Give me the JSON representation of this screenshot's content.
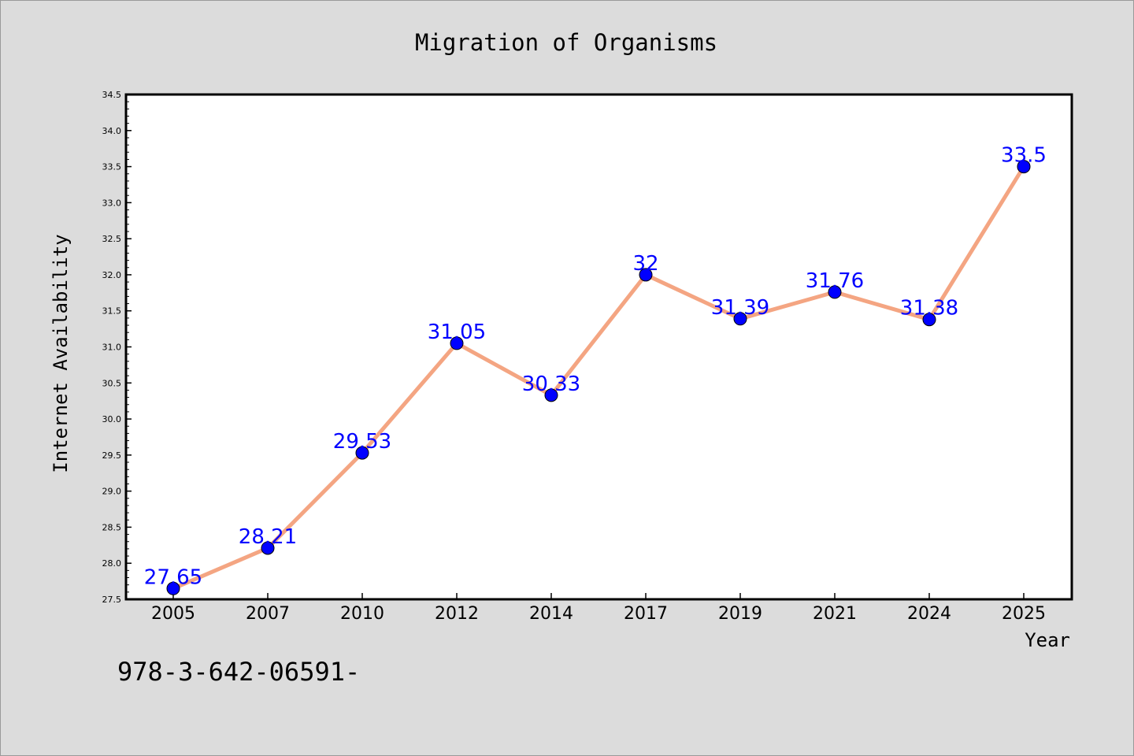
{
  "chart_data": {
    "type": "line",
    "title": "Migration of Organisms",
    "xlabel": "Year",
    "ylabel": "Internet Availability",
    "categories": [
      "2005",
      "2007",
      "2010",
      "2012",
      "2014",
      "2017",
      "2019",
      "2021",
      "2024",
      "2025"
    ],
    "series": [
      {
        "values": [
          27.65,
          28.21,
          29.53,
          31.05,
          30.33,
          32,
          31.39,
          31.76,
          31.38,
          33.5
        ],
        "labels": [
          "27.65",
          "28.21",
          "29.53",
          "31.05",
          "30.33",
          "32",
          "31.39",
          "31.76",
          "31.38",
          "33.5"
        ],
        "line_color": "#f4a582",
        "marker_color": "#0000ff",
        "label_color": "#0000ff"
      }
    ],
    "ylim": [
      27.5,
      34.5
    ],
    "yticks": [
      "27.5",
      "28.0",
      "28.5",
      "29.0",
      "29.5",
      "30.0",
      "30.5",
      "31.0",
      "31.5",
      "32.0",
      "32.5",
      "33.0",
      "33.5",
      "34.0",
      "34.5"
    ],
    "grid": false,
    "legend": "none"
  },
  "footer_text": "978-3-642-06591-",
  "colors": {
    "background": "#dcdcdc",
    "plot_background": "#ffffff",
    "axis": "#000000"
  }
}
